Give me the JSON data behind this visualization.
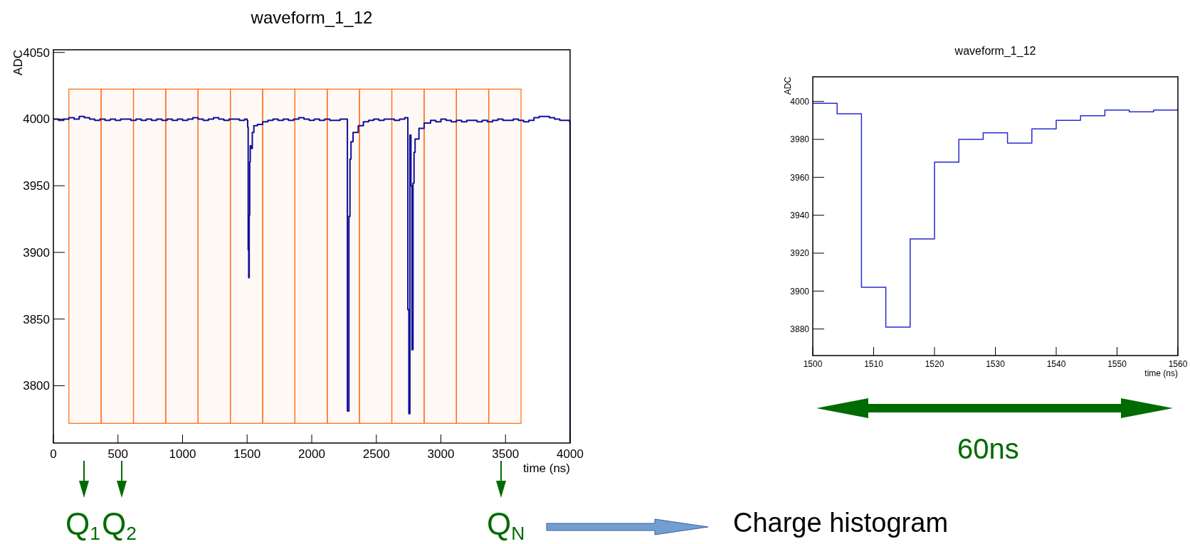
{
  "chart_data": [
    {
      "type": "step",
      "title": "waveform_1_12",
      "xlabel": "time (ns)",
      "ylabel": "ADC",
      "xlim": [
        0,
        4000
      ],
      "xticks": [
        0,
        500,
        1000,
        1500,
        2000,
        2500,
        3000,
        3500,
        4000
      ],
      "ylim": [
        3757,
        4052
      ],
      "yticks": [
        3800,
        3850,
        3900,
        3950,
        4000,
        4050
      ],
      "bands": [
        {
          "axis": "x",
          "from": 120,
          "to": 370,
          "color": "#ff6a13"
        },
        {
          "axis": "x",
          "from": 370,
          "to": 620,
          "color": "#ff6a13"
        },
        {
          "axis": "x",
          "from": 620,
          "to": 870,
          "color": "#ff6a13"
        },
        {
          "axis": "x",
          "from": 870,
          "to": 1120,
          "color": "#ff6a13"
        },
        {
          "axis": "x",
          "from": 1120,
          "to": 1370,
          "color": "#ff6a13"
        },
        {
          "axis": "x",
          "from": 1370,
          "to": 1620,
          "color": "#ff6a13"
        },
        {
          "axis": "x",
          "from": 1620,
          "to": 1870,
          "color": "#ff6a13"
        },
        {
          "axis": "x",
          "from": 1870,
          "to": 2120,
          "color": "#ff6a13"
        },
        {
          "axis": "x",
          "from": 2120,
          "to": 2370,
          "color": "#ff6a13"
        },
        {
          "axis": "x",
          "from": 2370,
          "to": 2620,
          "color": "#ff6a13"
        },
        {
          "axis": "x",
          "from": 2620,
          "to": 2870,
          "color": "#ff6a13"
        },
        {
          "axis": "x",
          "from": 2870,
          "to": 3120,
          "color": "#ff6a13"
        },
        {
          "axis": "x",
          "from": 3120,
          "to": 3370,
          "color": "#ff6a13"
        },
        {
          "axis": "x",
          "from": 3370,
          "to": 3620,
          "color": "#ff6a13"
        }
      ],
      "series": [
        {
          "color": "#10109a",
          "x": [
            0,
            40,
            80,
            120,
            160,
            200,
            240,
            280,
            320,
            360,
            400,
            440,
            480,
            520,
            560,
            600,
            640,
            680,
            720,
            760,
            800,
            840,
            880,
            920,
            960,
            1000,
            1040,
            1080,
            1120,
            1160,
            1200,
            1240,
            1280,
            1320,
            1360,
            1400,
            1440,
            1480,
            1500,
            1504,
            1508,
            1512,
            1516,
            1520,
            1524,
            1532,
            1540,
            1552,
            1580,
            1620,
            1660,
            1700,
            1740,
            1780,
            1820,
            1860,
            1900,
            1940,
            1980,
            2020,
            2060,
            2100,
            2140,
            2180,
            2220,
            2260,
            2276,
            2288,
            2296,
            2304,
            2320,
            2360,
            2400,
            2440,
            2480,
            2520,
            2560,
            2600,
            2640,
            2680,
            2720,
            2744,
            2752,
            2760,
            2768,
            2776,
            2784,
            2792,
            2800,
            2830,
            2870,
            2920,
            2960,
            3000,
            3040,
            3080,
            3120,
            3160,
            3200,
            3240,
            3280,
            3320,
            3360,
            3400,
            3440,
            3480,
            3520,
            3560,
            3600,
            3640,
            3680,
            3720,
            3760,
            3800,
            3840,
            3880,
            3920,
            3960,
            3996,
            4000
          ],
          "values": [
            4000,
            3999,
            4000,
            4001,
            4000,
            4002,
            4001,
            4000,
            3999,
            4000,
            3999,
            4000,
            3999,
            4000,
            4000,
            3999,
            4000,
            3999,
            4000,
            3999,
            4000,
            3999,
            4000,
            3999,
            4000,
            3999,
            4000,
            4001,
            4000,
            3999,
            4000,
            4001,
            4000,
            3999,
            4000,
            4000,
            3999,
            4000,
            3999,
            3994,
            3902,
            3881,
            3928,
            3968,
            3980,
            3978,
            3990,
            3995,
            3996,
            3998,
            3999,
            4000,
            3999,
            4000,
            3999,
            4000,
            4001,
            4000,
            3999,
            4000,
            3999,
            4000,
            3999,
            3999,
            4000,
            4000,
            3781,
            3927,
            3970,
            3983,
            3990,
            3995,
            3998,
            3999,
            4000,
            3999,
            4000,
            4000,
            3999,
            4000,
            4001,
            3857,
            3779,
            3988,
            3950,
            3827,
            3952,
            3975,
            3985,
            3993,
            3997,
            3999,
            3998,
            4000,
            3999,
            3998,
            3999,
            3998,
            3999,
            3999,
            3998,
            3999,
            3998,
            3999,
            4000,
            3999,
            3999,
            4000,
            3999,
            3998,
            3999,
            4001,
            4002,
            4002,
            4001,
            4000,
            3999,
            3999,
            3998,
            3757
          ]
        }
      ],
      "annotations": [
        "Q$_{1}$",
        "Q$_{2}$",
        "Q$_{N}$",
        "Charge histogram"
      ]
    },
    {
      "type": "step",
      "title": "waveform_1_12",
      "xlabel": "time (ns)",
      "ylabel": "ADC",
      "xlim": [
        1500,
        1560
      ],
      "xticks": [
        1500,
        1510,
        1520,
        1530,
        1540,
        1550,
        1560
      ],
      "ylim": [
        3866,
        4013
      ],
      "yticks": [
        3880,
        3900,
        3920,
        3940,
        3960,
        3980,
        4000
      ],
      "series": [
        {
          "color": "#2a2ad0",
          "x": [
            1500,
            1504,
            1508,
            1512,
            1516,
            1520,
            1524,
            1528,
            1532,
            1536,
            1540,
            1544,
            1548,
            1552,
            1556,
            1560
          ],
          "values": [
            3999,
            3993.5,
            3902,
            3881,
            3927.5,
            3968,
            3980,
            3983.5,
            3978,
            3985.5,
            3990,
            3992.5,
            3995.5,
            3994.5,
            3995.5,
            3995.5
          ]
        }
      ],
      "annotations": [
        "60ns"
      ]
    }
  ]
}
